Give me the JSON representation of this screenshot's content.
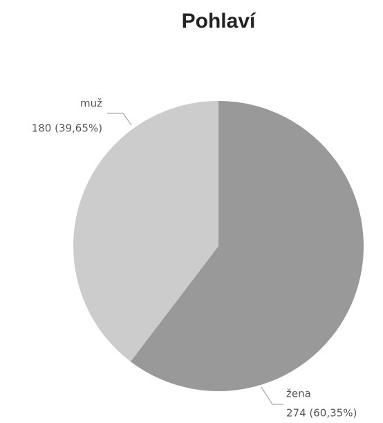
{
  "chart_data": {
    "type": "pie",
    "title": "Pohlaví",
    "categories": [
      "žena",
      "muž"
    ],
    "values": [
      274,
      180
    ],
    "value_labels": [
      "274 (60,35%)",
      "180 (39,65%)"
    ],
    "colors": [
      "#999999",
      "#cccccc"
    ]
  }
}
